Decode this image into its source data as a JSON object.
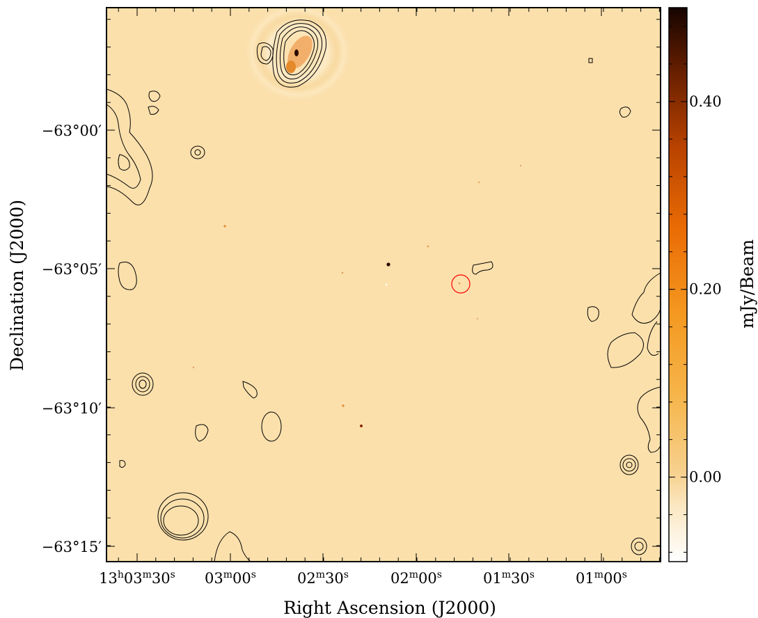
{
  "chart_data": {
    "type": "heatmap",
    "title": "",
    "xlabel": "Right Ascension (J2000)",
    "ylabel": "Declination (J2000)",
    "colorbar_label": "mJy/Beam",
    "x_ticks": [
      {
        "h": "13",
        "m": "03",
        "s": "30",
        "full": true
      },
      {
        "m": "03",
        "s": "00"
      },
      {
        "m": "02",
        "s": "30"
      },
      {
        "m": "02",
        "s": "00"
      },
      {
        "m": "01",
        "s": "30"
      },
      {
        "m": "01",
        "s": "00"
      }
    ],
    "x_tick_labels": [
      "13h03m30s",
      "03m00s",
      "02m30s",
      "02m00s",
      "01m30s",
      "01m00s"
    ],
    "y_tick_labels": [
      "−63°00′",
      "−63°05′",
      "−63°10′",
      "−63°15′"
    ],
    "y_tick_values_arcmin": [
      0,
      -5,
      -10,
      -15
    ],
    "colorbar": {
      "range": [
        -0.09,
        0.5
      ],
      "ticks": [
        0.0,
        0.2,
        0.4
      ],
      "tick_labels": [
        "0.00",
        "0.20",
        "0.40"
      ]
    },
    "colormap": [
      "#ffffff",
      "#f8d696",
      "#f5b23a",
      "#f48a10",
      "#e25a00",
      "#a83800",
      "#5e1a00",
      "#180400"
    ],
    "background_color": "#fbe0ac",
    "contour_color": "#000000",
    "marker_color": "#ff0000",
    "marker_shape": "circle",
    "grid": false
  }
}
